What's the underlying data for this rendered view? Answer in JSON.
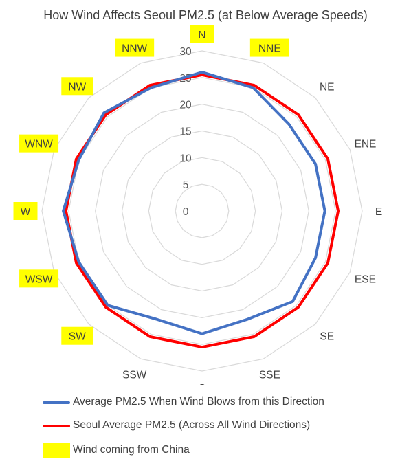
{
  "chart_data": {
    "type": "radar",
    "title": "How Wind Affects Seoul PM2.5 (at Below Average Speeds)",
    "categories": [
      "N",
      "NNE",
      "NE",
      "ENE",
      "E",
      "ESE",
      "SE",
      "SSE",
      "S",
      "SSW",
      "SW",
      "WSW",
      "W",
      "WNW",
      "NW",
      "NNW"
    ],
    "highlighted_categories": [
      "N",
      "NNE",
      "NNW",
      "NW",
      "WNW",
      "W",
      "WSW",
      "SW"
    ],
    "radial_axis": {
      "min": 0,
      "max": 30,
      "ticks": [
        "0",
        "5",
        "10",
        "15",
        "20",
        "25",
        "30"
      ]
    },
    "grid": true,
    "legend_position": "bottom",
    "series": [
      {
        "name": "Average PM2.5 When Wind Blows from this Direction",
        "color": "#4472C4",
        "values": [
          26,
          25,
          23,
          23,
          23,
          23,
          24,
          22,
          23,
          22,
          25,
          25,
          26,
          25,
          26,
          25
        ]
      },
      {
        "name": "Seoul Average PM2.5 (Across All Wind Directions)",
        "color": "#FF0000",
        "values": [
          25.5,
          25.5,
          25.5,
          25.5,
          25.5,
          25.5,
          25.5,
          25.5,
          25.5,
          25.5,
          25.5,
          25.5,
          25.5,
          25.5,
          25.5,
          25.5
        ]
      }
    ],
    "highlight_legend": {
      "label": "Wind coming from China",
      "color": "#FFFF00"
    }
  }
}
